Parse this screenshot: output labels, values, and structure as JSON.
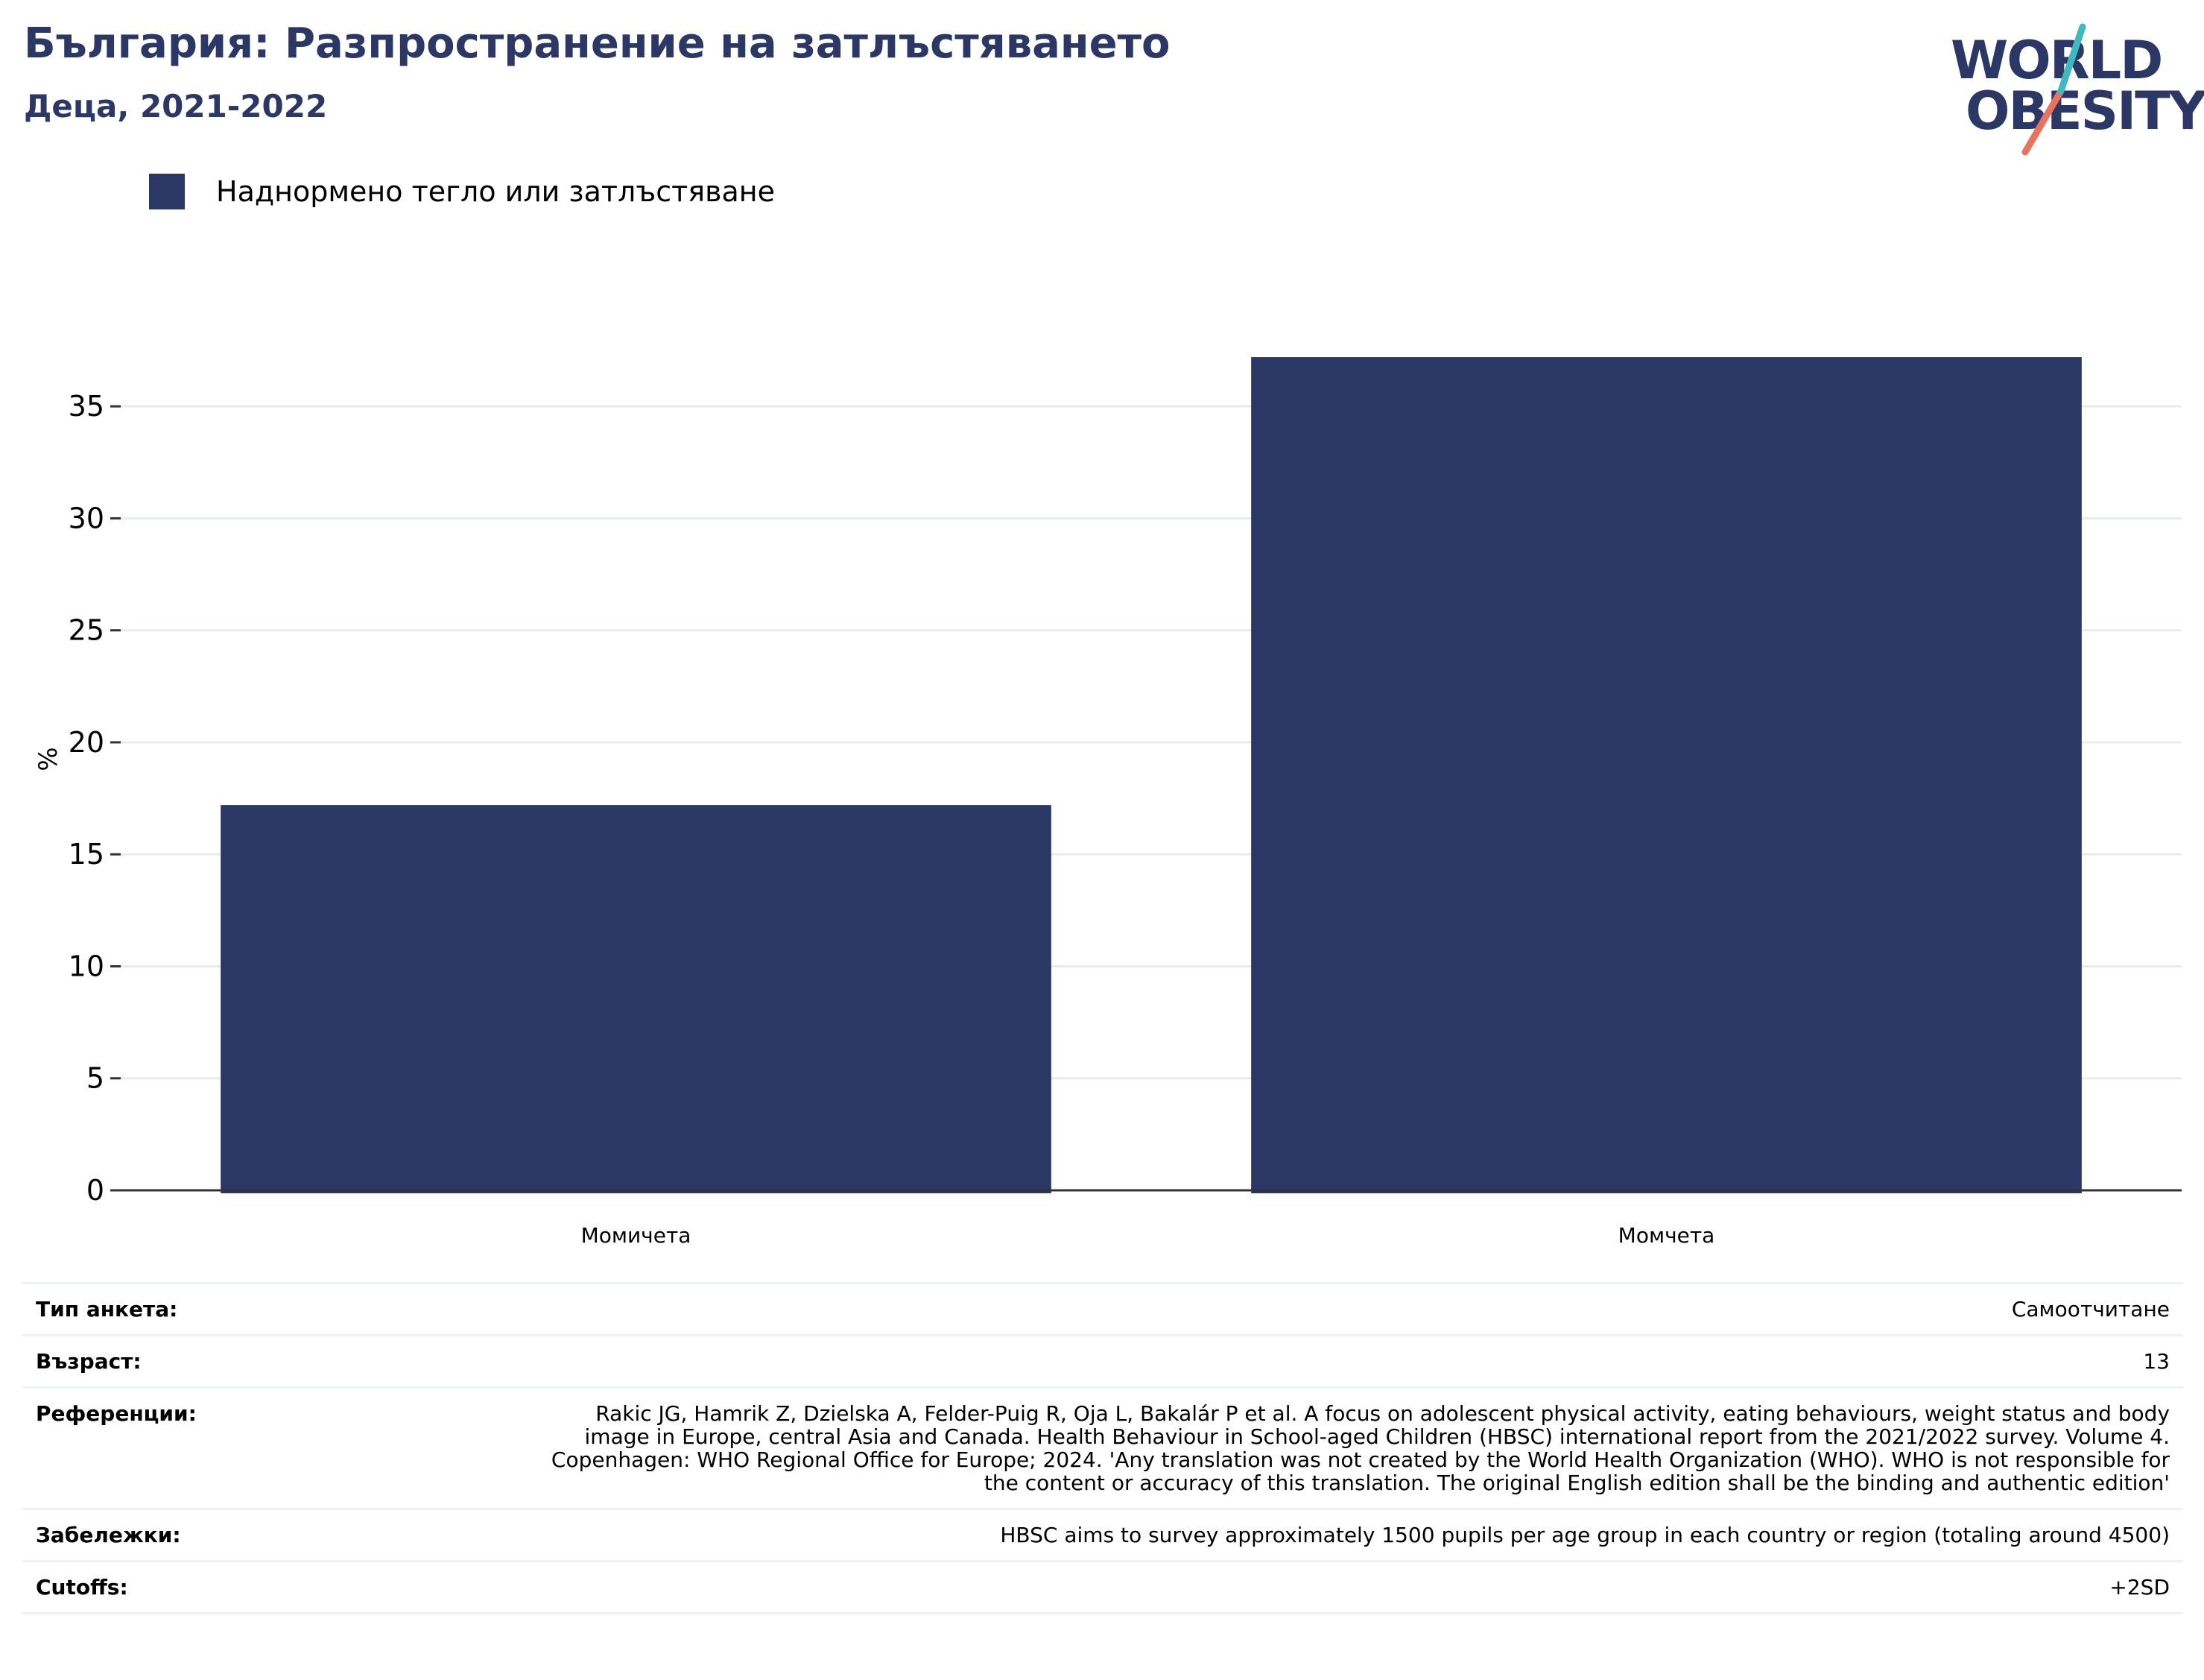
{
  "header": {
    "title": "България: Разпространение на затлъстяването",
    "subtitle": "Деца, 2021-2022"
  },
  "logo": {
    "line1": "WORLD",
    "line2": "OBESITY",
    "colors": {
      "text": "#2b3764",
      "accent_teal": "#3fb8c0",
      "accent_coral": "#e8735f"
    }
  },
  "legend": {
    "items": [
      {
        "label": "Наднормено тегло или затлъстяване",
        "color": "#2b3764"
      }
    ]
  },
  "chart_data": {
    "type": "bar",
    "categories": [
      "Момичета",
      "Момчета"
    ],
    "series": [
      {
        "name": "Наднормено тегло или затлъстяване",
        "values": [
          17.2,
          37.2
        ],
        "color": "#2b3764"
      }
    ],
    "xlabel": "",
    "ylabel": "%",
    "ylim": [
      0,
      38.5
    ],
    "yticks": [
      0,
      5,
      10,
      15,
      20,
      25,
      30,
      35
    ],
    "grid": true,
    "legend_position": "top-left"
  },
  "meta": {
    "rows": [
      {
        "label": "Тип анкета:",
        "value": "Самоотчитане"
      },
      {
        "label": "Възраст:",
        "value": "13"
      },
      {
        "label": "Референции:",
        "value": "Rakic JG, Hamrik Z, Dzielska A, Felder-Puig R, Oja L, Bakalár P et al. A focus on adolescent physical activity, eating behaviours, weight status and body image in Europe, central Asia and Canada. Health Behaviour in School-aged Children (HBSC) international report from the 2021/2022 survey. Volume 4. Copenhagen: WHO Regional Office for Europe; 2024. 'Any translation was not created by the World Health Organization (WHO). WHO is not responsible for the content or accuracy of this translation. The original English edition shall be the binding and authentic edition'"
      },
      {
        "label": "Забележки:",
        "value": "HBSC aims to survey approximately 1500 pupils per age group in each country or region (totaling around 4500)"
      },
      {
        "label": "Cutoffs:",
        "value": "+2SD"
      }
    ]
  }
}
